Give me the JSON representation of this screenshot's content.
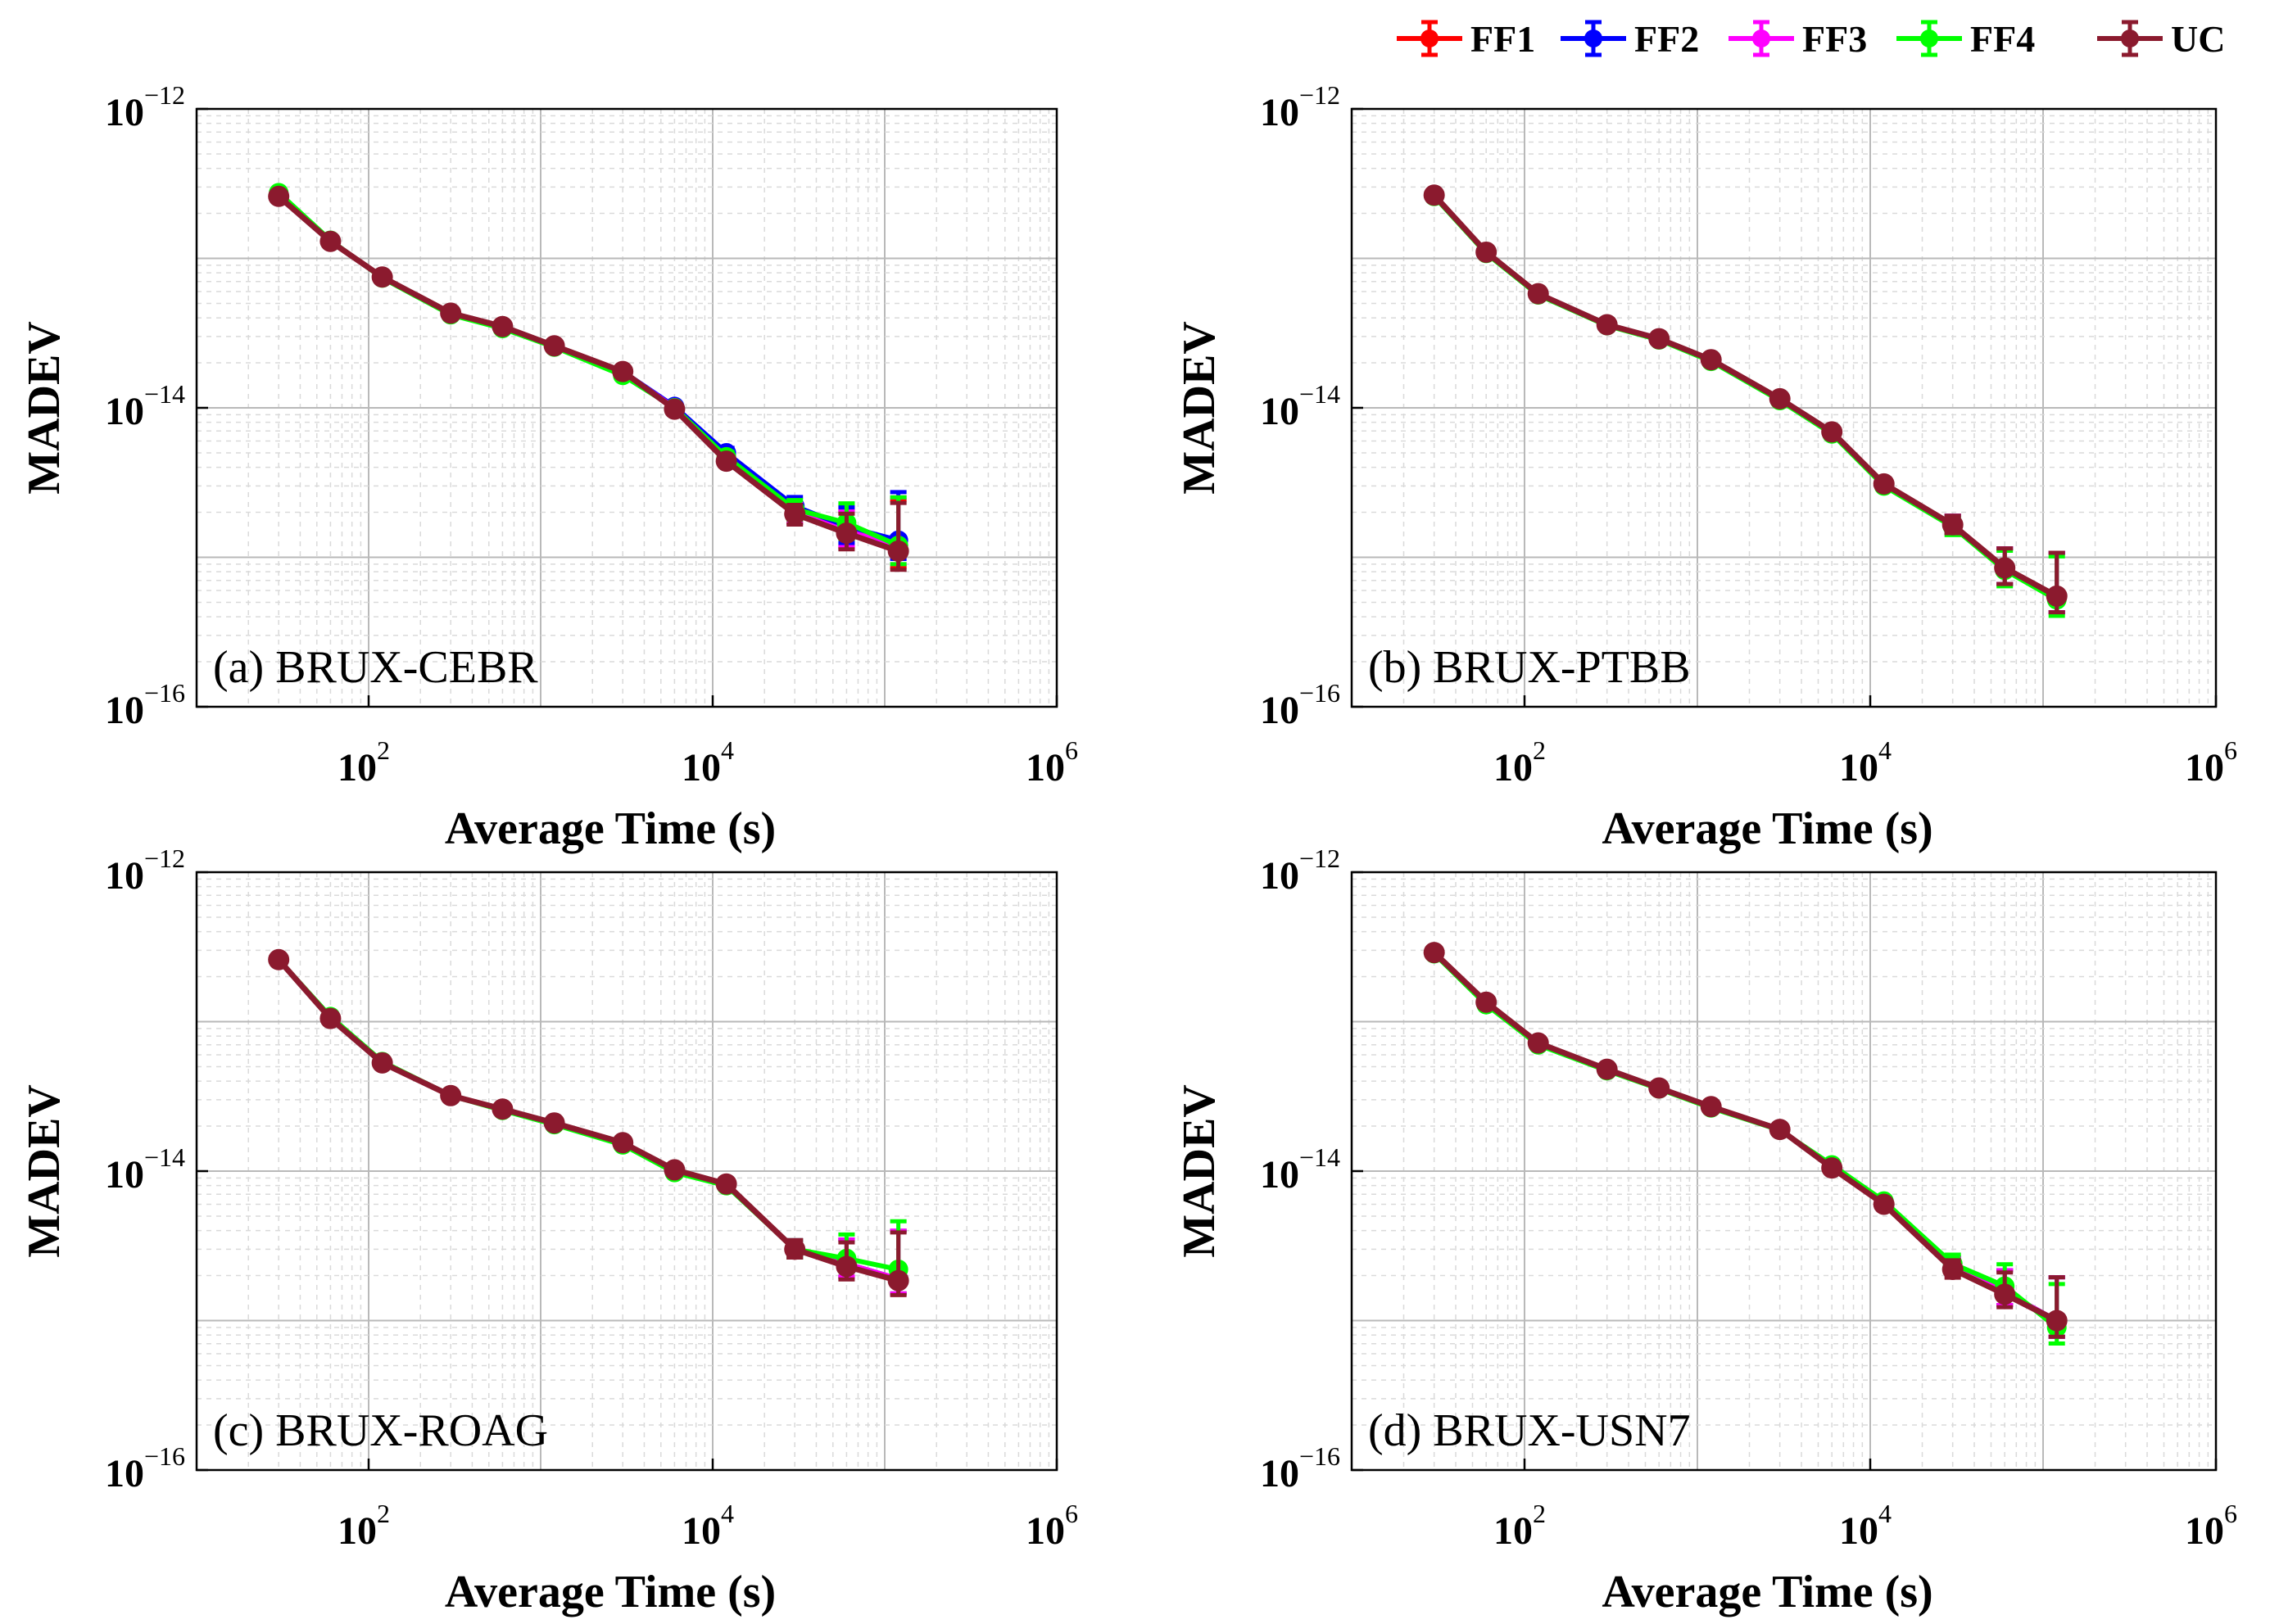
{
  "chart_data": {
    "type": "line",
    "x_scale": "log",
    "y_scale": "log",
    "xlim": [
      10,
      1000000
    ],
    "ylim": [
      1e-16,
      1e-12
    ],
    "xlabel": "Average Time (s)",
    "ylabel": "MADEV",
    "x_tick_labels": [
      {
        "value": 100,
        "base": "10",
        "exp": "2"
      },
      {
        "value": 10000,
        "base": "10",
        "exp": "4"
      },
      {
        "value": 1000000,
        "base": "10",
        "exp": "6"
      }
    ],
    "y_tick_labels": [
      {
        "value": 1e-12,
        "base": "10",
        "exp": "−12"
      },
      {
        "value": 1e-14,
        "base": "10",
        "exp": "−14"
      },
      {
        "value": 1e-16,
        "base": "10",
        "exp": "−16"
      }
    ],
    "grid": true,
    "legend": {
      "position": "top-right",
      "entries": [
        {
          "name": "FF1",
          "color": "#ff0000"
        },
        {
          "name": "FF2",
          "color": "#0000ff"
        },
        {
          "name": "FF3",
          "color": "#ff00ff"
        },
        {
          "name": "FF4",
          "color": "#00ff00"
        },
        {
          "name": "UC",
          "color": "#8b1a2e"
        }
      ]
    },
    "x": [
      30,
      60,
      120,
      300,
      600,
      1200,
      3000,
      6000,
      12000,
      30000,
      60000,
      120000
    ],
    "panels": [
      {
        "title": "(a) BRUX-CEBR",
        "series": {
          "FF1": [
            2.6e-13,
            1.3e-13,
            7.5e-14,
            4.3e-14,
            3.5e-14,
            2.6e-14,
            1.75e-14,
            1e-14,
            4.5e-15,
            2e-15,
            1.5e-15,
            1.15e-15
          ],
          "FF2": [
            2.6e-13,
            1.3e-13,
            7.5e-14,
            4.3e-14,
            3.5e-14,
            2.6e-14,
            1.75e-14,
            1.02e-14,
            5e-15,
            2.2e-15,
            1.6e-15,
            1.3e-15
          ],
          "FF3": [
            2.6e-13,
            1.3e-13,
            7.5e-14,
            4.3e-14,
            3.5e-14,
            2.6e-14,
            1.75e-14,
            1e-14,
            4.6e-15,
            2e-15,
            1.5e-15,
            1.2e-15
          ],
          "FF4": [
            2.75e-13,
            1.32e-13,
            7.4e-14,
            4.2e-14,
            3.4e-14,
            2.55e-14,
            1.65e-14,
            1e-14,
            4.7e-15,
            2.1e-15,
            1.7e-15,
            1.2e-15
          ],
          "UC": [
            2.6e-13,
            1.3e-13,
            7.5e-14,
            4.3e-14,
            3.5e-14,
            2.6e-14,
            1.75e-14,
            9.8e-15,
            4.4e-15,
            1.95e-15,
            1.45e-15,
            1.1e-15
          ]
        },
        "err": {
          "hi": [
            1,
            1,
            1,
            1,
            1,
            1,
            1,
            1,
            1.08,
            1.15,
            1.35,
            2.1
          ],
          "lo": [
            1,
            1,
            1,
            1,
            1,
            1,
            1,
            1,
            0.93,
            0.85,
            0.78,
            0.75
          ]
        }
      },
      {
        "title": "(b) BRUX-PTBB",
        "series": {
          "FF1": [
            2.65e-13,
            1.1e-13,
            5.8e-14,
            3.6e-14,
            2.9e-14,
            2.1e-14,
            1.15e-14,
            6.9e-15,
            3.1e-15,
            1.65e-15,
            8.5e-16,
            5.5e-16
          ],
          "FF2": [
            2.65e-13,
            1.1e-13,
            5.8e-14,
            3.6e-14,
            2.9e-14,
            2.1e-14,
            1.15e-14,
            6.9e-15,
            3.1e-15,
            1.65e-15,
            8.5e-16,
            5.5e-16
          ],
          "FF3": [
            2.65e-13,
            1.1e-13,
            5.8e-14,
            3.6e-14,
            2.9e-14,
            2.1e-14,
            1.15e-14,
            6.9e-15,
            3.1e-15,
            1.65e-15,
            8.5e-16,
            5.5e-16
          ],
          "FF4": [
            2.6e-13,
            1.08e-13,
            5.7e-14,
            3.55e-14,
            2.85e-14,
            2.05e-14,
            1.12e-14,
            6.7e-15,
            3e-15,
            1.6e-15,
            8.2e-16,
            5.2e-16
          ],
          "UC": [
            2.65e-13,
            1.1e-13,
            5.8e-14,
            3.6e-14,
            2.9e-14,
            2.1e-14,
            1.15e-14,
            6.9e-15,
            3.1e-15,
            1.65e-15,
            8.5e-16,
            5.5e-16
          ]
        },
        "err": {
          "hi": [
            1,
            1,
            1,
            1,
            1,
            1,
            1,
            1,
            1.05,
            1.15,
            1.35,
            1.95
          ],
          "lo": [
            1,
            1,
            1,
            1,
            1,
            1,
            1,
            1,
            0.95,
            0.88,
            0.78,
            0.78
          ]
        }
      },
      {
        "title": "(c) BRUX-ROAG",
        "series": {
          "FF1": [
            2.6e-13,
            1.05e-13,
            5.3e-14,
            3.2e-14,
            2.6e-14,
            2.1e-14,
            1.55e-14,
            1.02e-14,
            8.2e-15,
            3e-15,
            2.4e-15,
            1.9e-15
          ],
          "FF2": [
            2.6e-13,
            1.05e-13,
            5.3e-14,
            3.2e-14,
            2.6e-14,
            2.1e-14,
            1.55e-14,
            1.02e-14,
            8.2e-15,
            3e-15,
            2.4e-15,
            1.9e-15
          ],
          "FF3": [
            2.6e-13,
            1.05e-13,
            5.3e-14,
            3.2e-14,
            2.6e-14,
            2.1e-14,
            1.55e-14,
            1.02e-14,
            8.2e-15,
            3e-15,
            2.4e-15,
            1.9e-15
          ],
          "FF4": [
            2.6e-13,
            1.08e-13,
            5.4e-14,
            3.2e-14,
            2.55e-14,
            2.05e-14,
            1.5e-14,
            9.8e-15,
            8e-15,
            3e-15,
            2.6e-15,
            2.2e-15
          ],
          "UC": [
            2.6e-13,
            1.05e-13,
            5.3e-14,
            3.2e-14,
            2.6e-14,
            2.1e-14,
            1.55e-14,
            1.02e-14,
            8.2e-15,
            3e-15,
            2.3e-15,
            1.85e-15
          ]
        },
        "err": {
          "hi": [
            1,
            1,
            1,
            1,
            1,
            1,
            1,
            1,
            1.05,
            1.15,
            1.45,
            2.1
          ],
          "lo": [
            1,
            1,
            1,
            1,
            1,
            1,
            1,
            1,
            0.95,
            0.88,
            0.82,
            0.8
          ]
        }
      },
      {
        "title": "(d) BRUX-USN7",
        "series": {
          "FF1": [
            2.9e-13,
            1.35e-13,
            7.2e-14,
            4.8e-14,
            3.6e-14,
            2.7e-14,
            1.9e-14,
            1.05e-14,
            6e-15,
            2.3e-15,
            1.55e-15,
            1e-15
          ],
          "FF2": [
            2.9e-13,
            1.35e-13,
            7.2e-14,
            4.8e-14,
            3.6e-14,
            2.7e-14,
            1.9e-14,
            1.05e-14,
            6e-15,
            2.3e-15,
            1.55e-15,
            1e-15
          ],
          "FF3": [
            2.9e-13,
            1.35e-13,
            7.2e-14,
            4.8e-14,
            3.6e-14,
            2.7e-14,
            1.9e-14,
            1.05e-14,
            6e-15,
            2.3e-15,
            1.55e-15,
            1e-15
          ],
          "FF4": [
            2.85e-13,
            1.3e-13,
            7e-14,
            4.7e-14,
            3.55e-14,
            2.65e-14,
            1.88e-14,
            1.1e-14,
            6.3e-15,
            2.4e-15,
            1.7e-15,
            9e-16
          ],
          "UC": [
            2.9e-13,
            1.35e-13,
            7.2e-14,
            4.8e-14,
            3.6e-14,
            2.7e-14,
            1.9e-14,
            1.05e-14,
            6e-15,
            2.2e-15,
            1.5e-15,
            1e-15
          ]
        },
        "err": {
          "hi": [
            1,
            1,
            1,
            1,
            1,
            1,
            1,
            1,
            1.05,
            1.15,
            1.4,
            1.95
          ],
          "lo": [
            1,
            1,
            1,
            1,
            1,
            1,
            1,
            1,
            0.95,
            0.88,
            0.82,
            0.78
          ]
        }
      }
    ]
  }
}
